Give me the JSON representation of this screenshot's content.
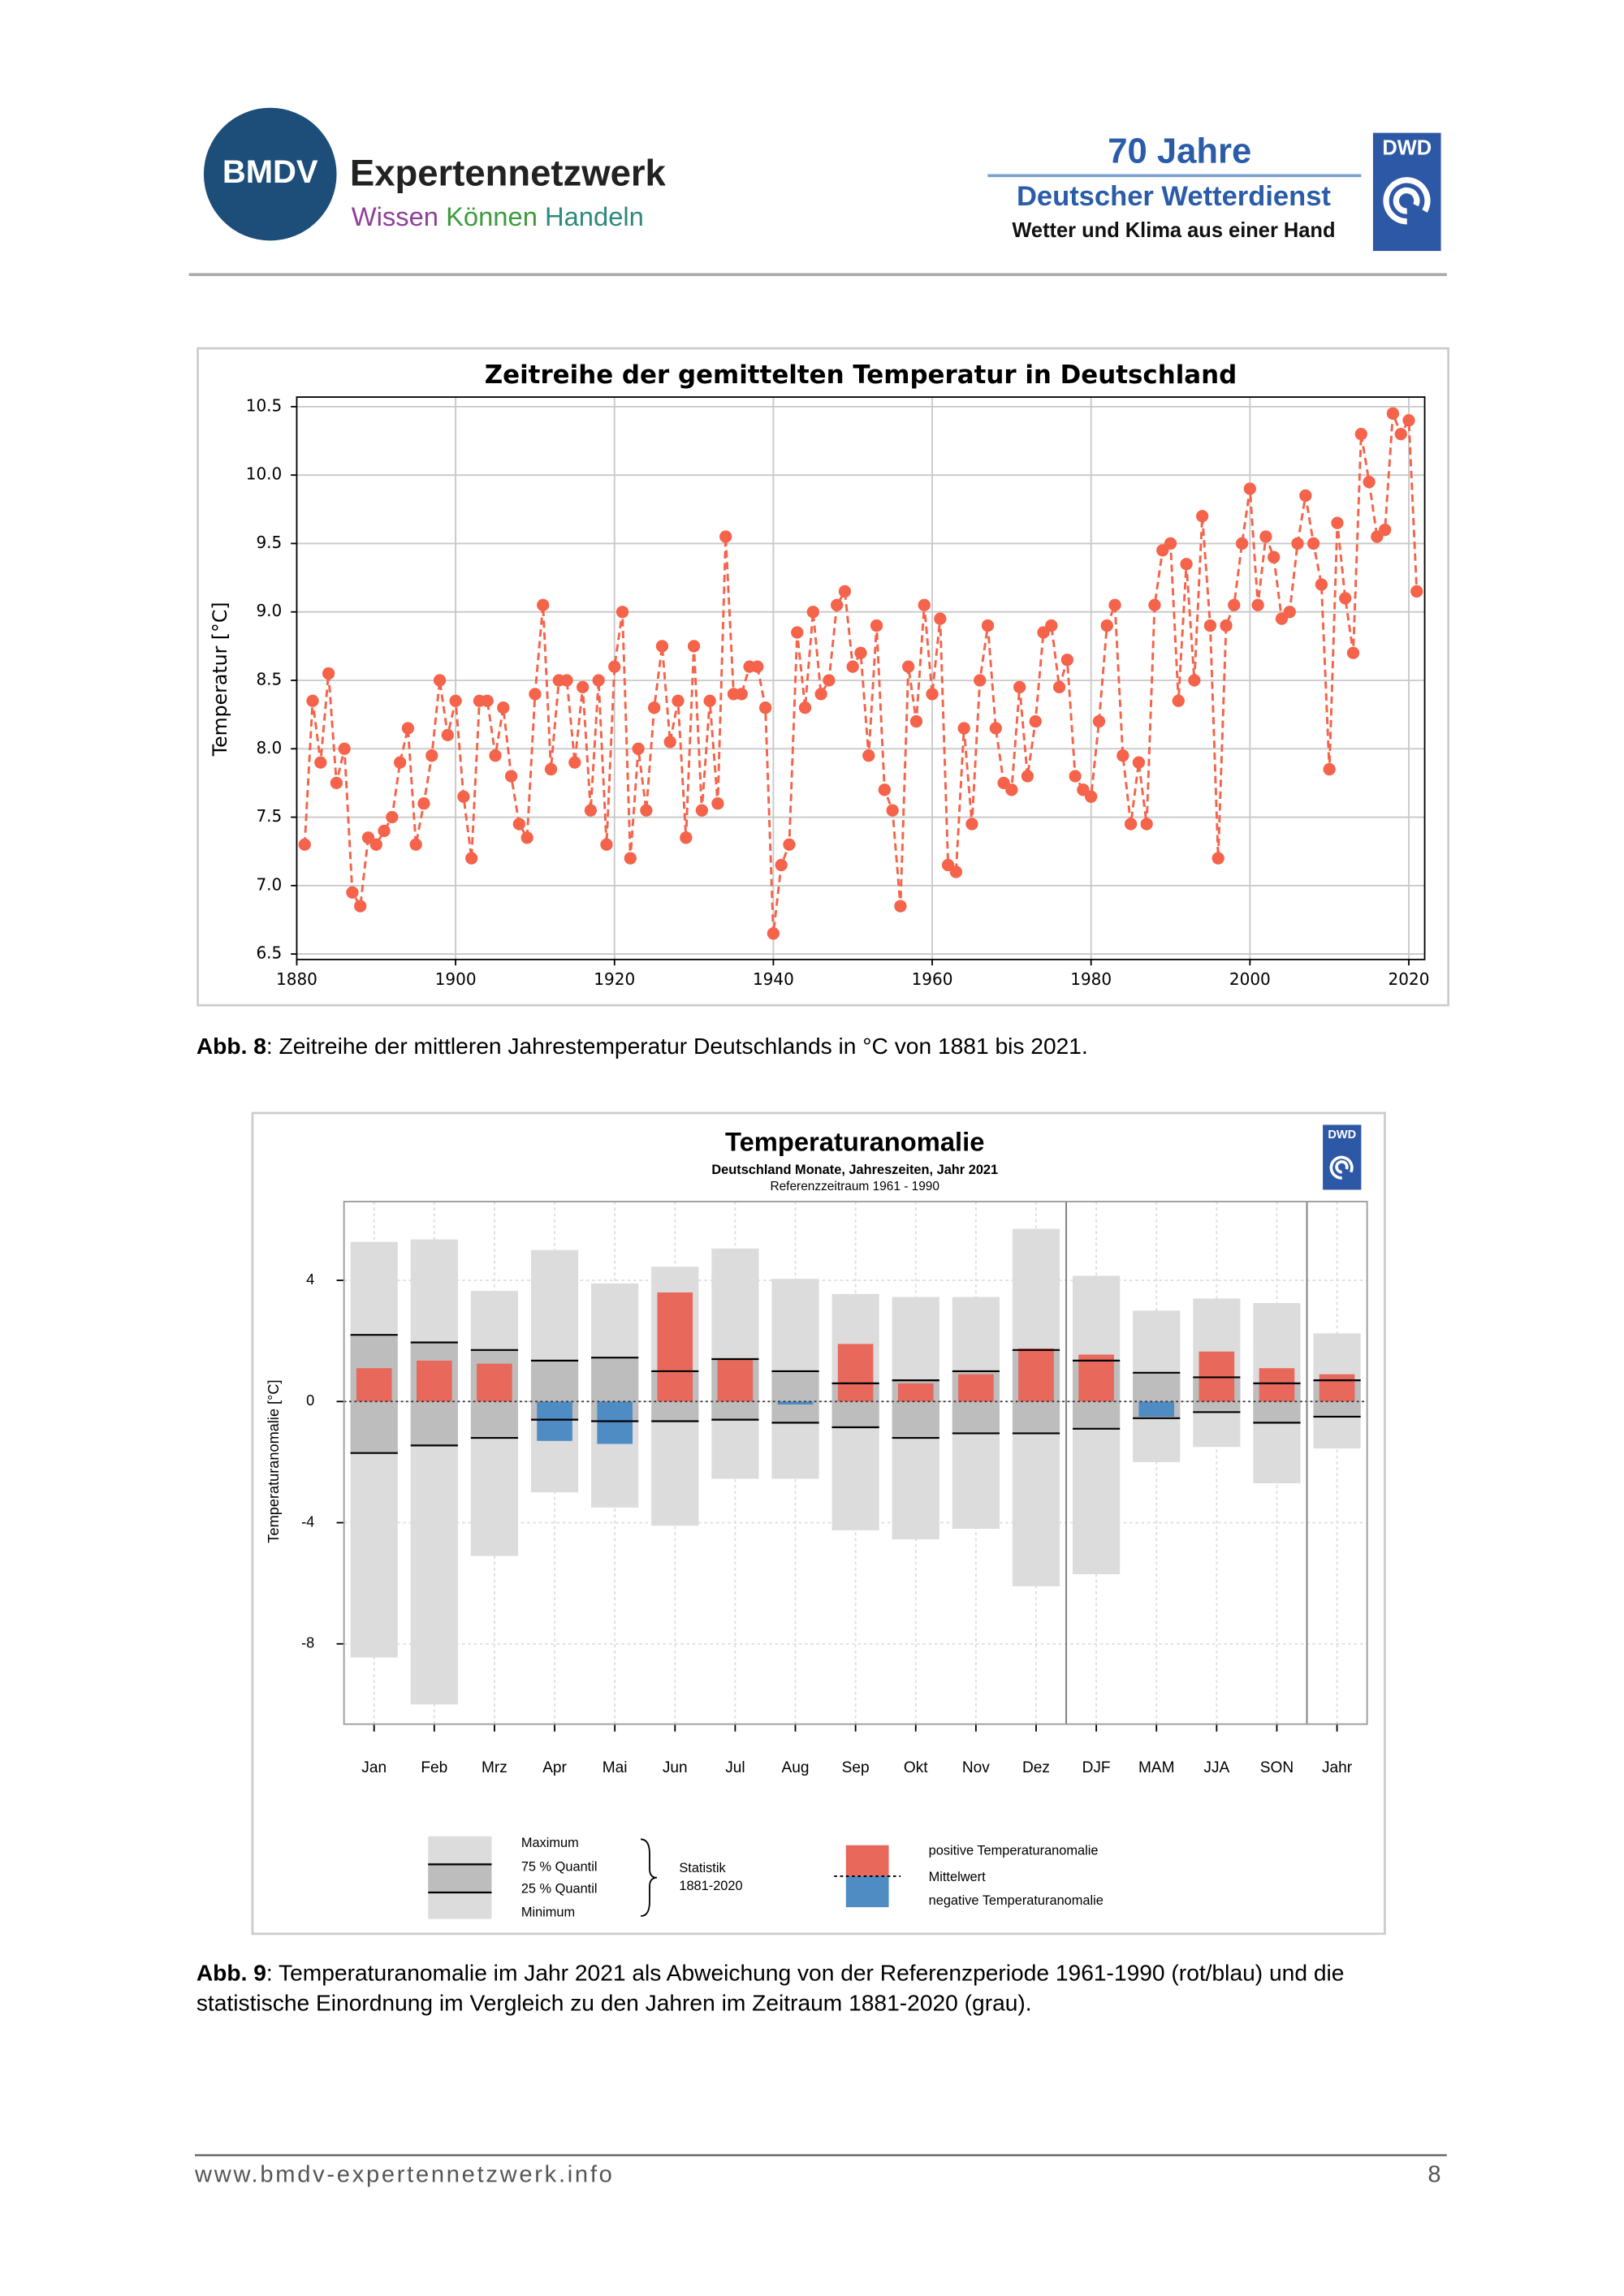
{
  "header": {
    "logo": "BMDV",
    "network": "Expertennetzwerk",
    "slogan": [
      "Wissen",
      "Können",
      "Handeln"
    ],
    "anniversary": "70 Jahre",
    "org": "Deutscher Wetterdienst",
    "tagline": "Wetter und Klima aus einer Hand",
    "dwd": "DWD"
  },
  "chart_data": [
    {
      "type": "line",
      "title": "Zeitreihe der gemittelten Temperatur in Deutschland",
      "ylabel": "Temperatur [°C]",
      "x": [
        1881,
        1882,
        1883,
        1884,
        1885,
        1886,
        1887,
        1888,
        1889,
        1890,
        1891,
        1892,
        1893,
        1894,
        1895,
        1896,
        1897,
        1898,
        1899,
        1900,
        1901,
        1902,
        1903,
        1904,
        1905,
        1906,
        1907,
        1908,
        1909,
        1910,
        1911,
        1912,
        1913,
        1914,
        1915,
        1916,
        1917,
        1918,
        1919,
        1920,
        1921,
        1922,
        1923,
        1924,
        1925,
        1926,
        1927,
        1928,
        1929,
        1930,
        1931,
        1932,
        1933,
        1934,
        1935,
        1936,
        1937,
        1938,
        1939,
        1940,
        1941,
        1942,
        1943,
        1944,
        1945,
        1946,
        1947,
        1948,
        1949,
        1950,
        1951,
        1952,
        1953,
        1954,
        1955,
        1956,
        1957,
        1958,
        1959,
        1960,
        1961,
        1962,
        1963,
        1964,
        1965,
        1966,
        1967,
        1968,
        1969,
        1970,
        1971,
        1972,
        1973,
        1974,
        1975,
        1976,
        1977,
        1978,
        1979,
        1980,
        1981,
        1982,
        1983,
        1984,
        1985,
        1986,
        1987,
        1988,
        1989,
        1990,
        1991,
        1992,
        1993,
        1994,
        1995,
        1996,
        1997,
        1998,
        1999,
        2000,
        2001,
        2002,
        2003,
        2004,
        2005,
        2006,
        2007,
        2008,
        2009,
        2010,
        2011,
        2012,
        2013,
        2014,
        2015,
        2016,
        2017,
        2018,
        2019,
        2020,
        2021
      ],
      "values": [
        7.3,
        8.35,
        7.9,
        8.55,
        7.75,
        8.0,
        6.95,
        6.85,
        7.35,
        7.3,
        7.4,
        7.5,
        7.9,
        8.15,
        7.3,
        7.6,
        7.95,
        8.5,
        8.1,
        8.35,
        7.65,
        7.2,
        8.35,
        8.35,
        7.95,
        8.3,
        7.8,
        7.45,
        7.35,
        8.4,
        9.05,
        7.85,
        8.5,
        8.5,
        7.9,
        8.45,
        7.55,
        8.5,
        7.3,
        8.6,
        9.0,
        7.2,
        8.0,
        7.55,
        8.3,
        8.75,
        8.05,
        8.35,
        7.35,
        8.75,
        7.55,
        8.35,
        7.6,
        9.55,
        8.4,
        8.4,
        8.6,
        8.6,
        8.3,
        6.65,
        7.15,
        7.3,
        8.85,
        8.3,
        9.0,
        8.4,
        8.5,
        9.05,
        9.15,
        8.6,
        8.7,
        7.95,
        8.9,
        7.7,
        7.55,
        6.85,
        8.6,
        8.2,
        9.05,
        8.4,
        8.95,
        7.15,
        7.1,
        8.15,
        7.45,
        8.5,
        8.9,
        8.15,
        7.75,
        7.7,
        8.45,
        7.8,
        8.2,
        8.85,
        8.9,
        8.45,
        8.65,
        7.8,
        7.7,
        7.65,
        8.2,
        8.9,
        9.05,
        7.95,
        7.45,
        7.9,
        7.45,
        9.05,
        9.45,
        9.5,
        8.35,
        9.35,
        8.5,
        9.7,
        8.9,
        7.2,
        8.9,
        9.05,
        9.5,
        9.9,
        9.05,
        9.55,
        9.4,
        8.95,
        9.0,
        9.5,
        9.85,
        9.5,
        9.2,
        7.85,
        9.65,
        9.1,
        8.7,
        10.3,
        9.95,
        9.55,
        9.6,
        10.45,
        10.3,
        10.4,
        9.15
      ],
      "color": "#f4634a",
      "linestyle": "dashed",
      "marker": "circle",
      "xlim": [
        1880,
        2022
      ],
      "xticks": [
        1880,
        1900,
        1920,
        1940,
        1960,
        1980,
        2000,
        2020
      ],
      "ylim": [
        6.46,
        10.57
      ],
      "yticks": [
        6.5,
        {
          "value": 7,
          "label": "7.0"
        },
        7.5,
        {
          "value": 8,
          "label": "8.0"
        },
        8.5,
        {
          "value": 9,
          "label": "9.0"
        },
        9.5,
        {
          "value": 10,
          "label": "10.0"
        },
        10.5
      ],
      "grid": true
    },
    {
      "type": "anomaly",
      "title": "Temperaturanomalie",
      "subtitle": "Deutschland Monate, Jahreszeiten, Jahr 2021",
      "note": "Referenzzeitraum 1961 - 1990",
      "ylabel": "Temperaturanomalie [°C]",
      "categories": [
        "Jan",
        "Feb",
        "Mrz",
        "Apr",
        "Mai",
        "Jun",
        "Jul",
        "Aug",
        "Sep",
        "Okt",
        "Nov",
        "Dez",
        "DJF",
        "MAM",
        "JJA",
        "SON",
        "Jahr"
      ],
      "ylim": [
        -10.65,
        6.6
      ],
      "yticks": [
        4,
        0,
        -4,
        -8
      ],
      "grid": true,
      "range_color": "#dcdcdc",
      "quartile_color": "#bdbdbd",
      "statistics": [
        {
          "name": "Maximum",
          "values": [
            5.27,
            5.35,
            3.65,
            5.0,
            3.9,
            4.45,
            5.05,
            4.05,
            3.55,
            3.45,
            3.45,
            5.7,
            4.15,
            3.0,
            3.4,
            3.25,
            2.25
          ]
        },
        {
          "name": "75 % Quantil",
          "values": [
            2.2,
            1.95,
            1.7,
            1.35,
            1.45,
            1.0,
            1.4,
            1.0,
            0.6,
            0.7,
            1.0,
            1.7,
            1.35,
            0.95,
            0.8,
            0.6,
            0.7
          ]
        },
        {
          "name": "25 % Quantil",
          "values": [
            -1.7,
            -1.45,
            -1.2,
            -0.6,
            -0.65,
            -0.65,
            -0.6,
            -0.7,
            -0.85,
            -1.2,
            -1.05,
            -1.05,
            -0.9,
            -0.55,
            -0.35,
            -0.7,
            -0.5
          ]
        },
        {
          "name": "Minimum",
          "values": [
            -8.45,
            -10.0,
            -5.1,
            -3.0,
            -3.5,
            -4.1,
            -2.55,
            -2.55,
            -4.25,
            -4.55,
            -4.2,
            -6.1,
            -5.7,
            -2.0,
            -1.5,
            -2.7,
            -1.55
          ]
        }
      ],
      "stat_label": [
        "Statistik",
        "1881-2020"
      ],
      "anomaly": {
        "values": [
          1.1,
          1.35,
          1.25,
          -1.3,
          -1.4,
          3.6,
          1.4,
          -0.1,
          1.9,
          0.6,
          0.9,
          1.75,
          1.55,
          -0.5,
          1.65,
          1.1,
          0.9
        ],
        "positive": {
          "name": "positive Temperaturanomalie",
          "color": "#e8685b"
        },
        "negative": {
          "name": "negative Temperaturanomalie",
          "color": "#4f8cc4"
        }
      },
      "mean_label": "Mittelwert"
    }
  ],
  "captions": [
    {
      "label": "Abb. 8",
      "text": ": Zeitreihe der mittleren Jahrestemperatur Deutschlands in °C von 1881 bis 2021."
    },
    {
      "label": "Abb. 9",
      "text": ": Temperaturanomalie im Jahr 2021 als Abweichung von der Referenzperiode 1961-1990 (rot/blau) und die",
      "text2": "statistische Einordnung im Vergleich zu den Jahren im Zeitraum 1881-2020 (grau)."
    }
  ],
  "footer": {
    "url": "www.bmdv-expertennetzwerk.info",
    "page": "8"
  }
}
